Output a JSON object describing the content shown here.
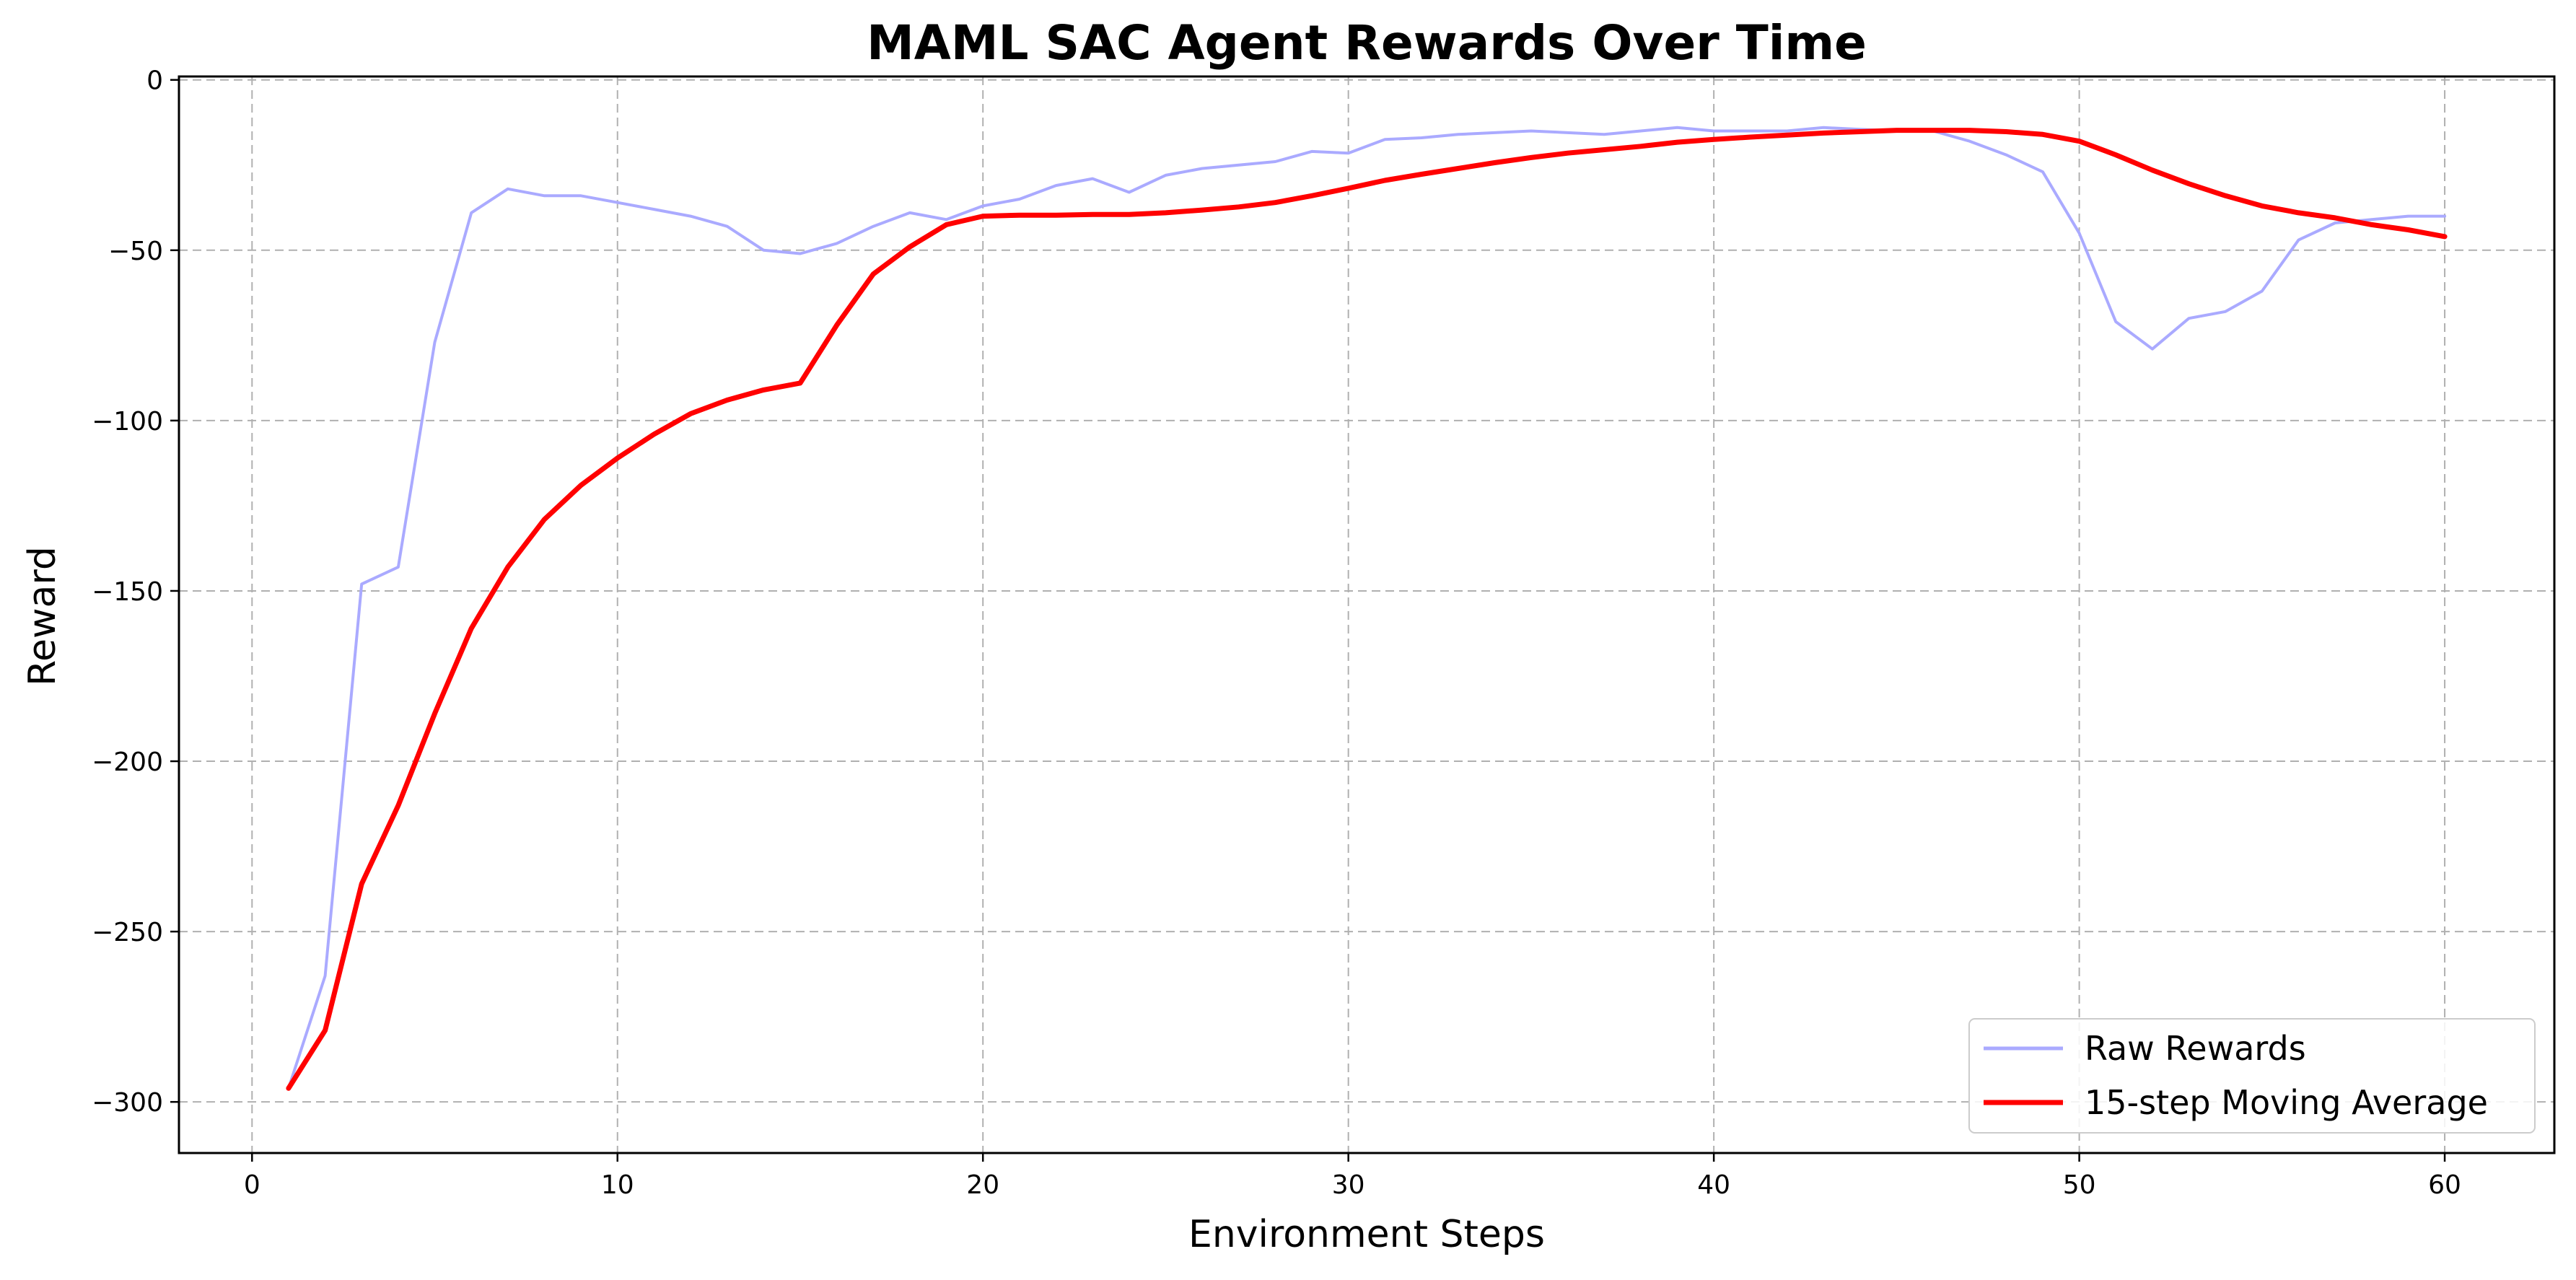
{
  "chart_data": {
    "type": "line",
    "title": "MAML SAC Agent Rewards Over Time",
    "xlabel": "Environment Steps",
    "ylabel": "Reward",
    "xlim": [
      -2,
      63
    ],
    "ylim": [
      -315,
      1
    ],
    "xticks": [
      0,
      10,
      20,
      30,
      40,
      50,
      60
    ],
    "yticks": [
      0,
      -50,
      -100,
      -150,
      -200,
      -250,
      -300
    ],
    "xtick_labels": [
      "0",
      "10",
      "20",
      "30",
      "40",
      "50",
      "60"
    ],
    "ytick_labels": [
      "0",
      "−50",
      "−100",
      "−150",
      "−200",
      "−250",
      "−300"
    ],
    "grid": true,
    "legend_position": "bottom-right",
    "series": [
      {
        "name": "Raw Rewards",
        "color": "#aaaaff",
        "x": [
          1,
          2,
          3,
          4,
          5,
          6,
          7,
          8,
          9,
          10,
          11,
          12,
          13,
          14,
          15,
          16,
          17,
          18,
          19,
          20,
          21,
          22,
          23,
          24,
          25,
          26,
          27,
          28,
          29,
          30,
          31,
          32,
          33,
          34,
          35,
          36,
          37,
          38,
          39,
          40,
          41,
          42,
          43,
          44,
          45,
          46,
          47,
          48,
          49,
          50,
          51,
          52,
          53,
          54,
          55,
          56,
          57,
          58,
          59,
          60
        ],
        "y": [
          -296,
          -263,
          -148,
          -143,
          -77,
          -39,
          -32,
          -34,
          -34,
          -36,
          -38,
          -40,
          -43,
          -50,
          -51,
          -48,
          -43,
          -39,
          -41,
          -37,
          -35,
          -31,
          -29,
          -33,
          -28,
          -26,
          -25,
          -24,
          -21,
          -21.5,
          -17.5,
          -17,
          -16,
          -15.5,
          -15,
          -15.5,
          -16,
          -15,
          -14,
          -15,
          -15,
          -15,
          -14,
          -14.5,
          -15,
          -15,
          -18,
          -22,
          -27,
          -45,
          -71,
          -79,
          -70,
          -68,
          -62,
          -47,
          -42,
          -41,
          -40,
          -40
        ]
      },
      {
        "name": "15-step Moving Average",
        "color": "#ff0000",
        "x": [
          1,
          2,
          3,
          4,
          5,
          6,
          7,
          8,
          9,
          10,
          11,
          12,
          13,
          14,
          15,
          16,
          17,
          18,
          19,
          20,
          21,
          22,
          23,
          24,
          25,
          26,
          27,
          28,
          29,
          30,
          31,
          32,
          33,
          34,
          35,
          36,
          37,
          38,
          39,
          40,
          41,
          42,
          43,
          44,
          45,
          46,
          47,
          48,
          49,
          50,
          51,
          52,
          53,
          54,
          55,
          56,
          57,
          58,
          59,
          60
        ],
        "y": [
          -296,
          -279,
          -236,
          -213,
          -186,
          -161,
          -143,
          -129,
          -119,
          -111,
          -104,
          -98,
          -94,
          -91,
          -89,
          -72,
          -57,
          -49,
          -42.5,
          -40,
          -39.7,
          -39.7,
          -39.5,
          -39.5,
          -39,
          -38.2,
          -37.3,
          -36,
          -34,
          -31.8,
          -29.5,
          -27.7,
          -26,
          -24.3,
          -22.8,
          -21.5,
          -20.5,
          -19.5,
          -18.3,
          -17.5,
          -16.8,
          -16.2,
          -15.6,
          -15.2,
          -14.8,
          -14.8,
          -14.8,
          -15.2,
          -16,
          -18,
          -22,
          -26.5,
          -30.5,
          -34,
          -37,
          -39,
          -40.5,
          -42.5,
          -44,
          -46
        ]
      }
    ]
  }
}
